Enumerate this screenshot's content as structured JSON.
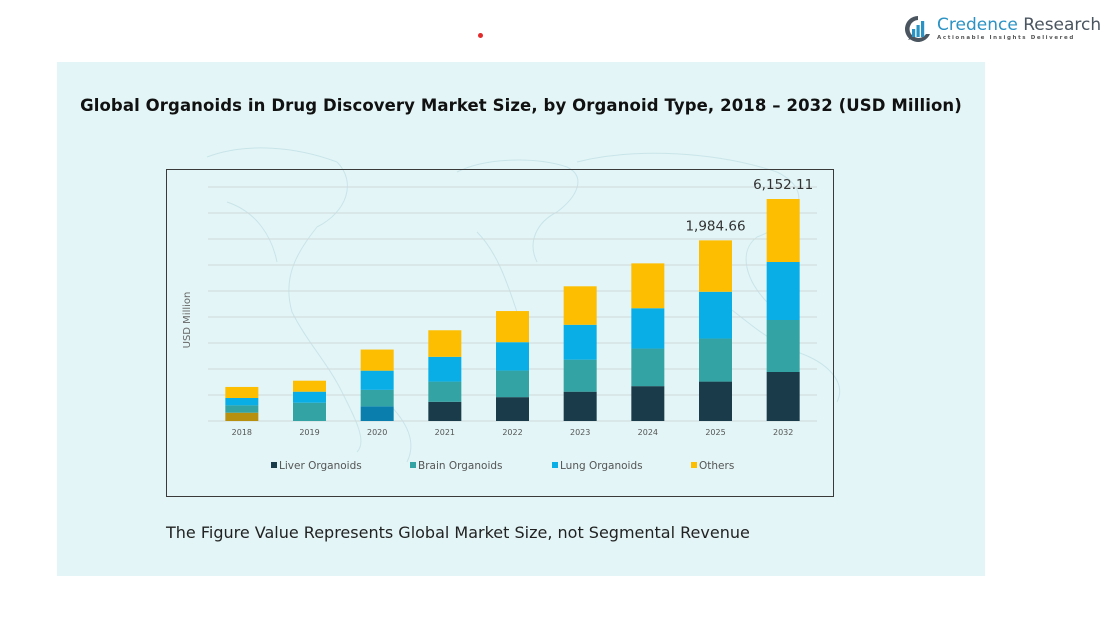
{
  "brand": {
    "name_part1": "Credence",
    "name_part2": "Research",
    "tagline": "Actionable Insights Delivered",
    "logo_icon": "bar-chart-circle-icon",
    "colors": {
      "primary": "#2a93c4",
      "secondary": "#4a5560"
    }
  },
  "footnote": "The Figure Value Represents Global Market Size, not Segmental Revenue",
  "chart_data": {
    "type": "bar",
    "stacked": true,
    "title": "Global Organoids in Drug Discovery Market Size, by Organoid Type, 2018 – 2032 (USD Million)",
    "xlabel": "",
    "ylabel": "USD Million",
    "categories": [
      "2018",
      "2019",
      "2020",
      "2021",
      "2022",
      "2023",
      "2024",
      "2025",
      "2032"
    ],
    "series": [
      {
        "name": "Liver Organoids",
        "color": "#1a3c4a",
        "values": [
          91,
          0,
          161,
          211,
          262,
          322,
          383,
          433,
          1358
        ]
      },
      {
        "name": "Brain Organoids",
        "color": "#33a3a3",
        "values": [
          81,
          201,
          181,
          222,
          292,
          352,
          413,
          473,
          1441
        ]
      },
      {
        "name": "Lung Organoids",
        "color": "#0aaee6",
        "values": [
          81,
          121,
          211,
          272,
          312,
          383,
          443,
          514,
          1607
        ]
      },
      {
        "name": "Others",
        "color": "#fdbd00",
        "values": [
          121,
          121,
          232,
          292,
          342,
          423,
          493,
          564.66,
          1746.11
        ]
      }
    ],
    "segment_color_overrides": [
      {
        "category": "2018",
        "series": "Liver Organoids",
        "color": "#b8900f"
      },
      {
        "category": "2020",
        "series": "Liver Organoids",
        "color": "#0a7fae"
      }
    ],
    "data_labels": [
      {
        "category": "2025",
        "text": "1,984.66"
      },
      {
        "category": "2032",
        "text": "6,152.11"
      }
    ],
    "ylim": [
      0,
      2400
    ],
    "y_ticks_shown": false,
    "grid": true,
    "legend": {
      "position": "bottom",
      "entries": [
        "Liver Organoids",
        "Brain Organoids",
        "Lung Organoids",
        "Others"
      ]
    },
    "axis_break_after": "2025"
  }
}
